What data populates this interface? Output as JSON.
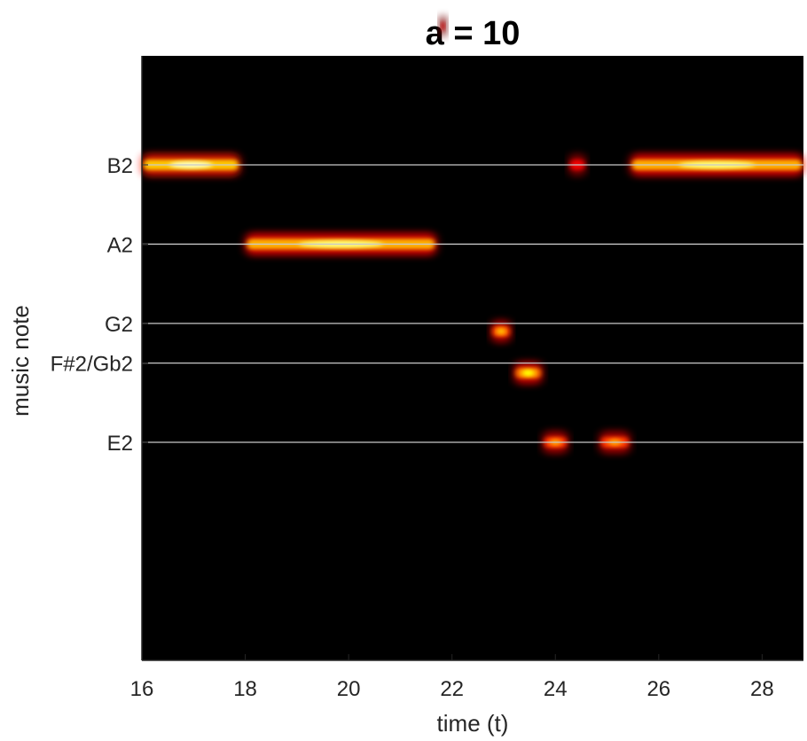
{
  "chart_data": {
    "type": "heatmap",
    "title": "a = 10",
    "xlabel": "time (t)",
    "ylabel": "music note",
    "xlim": [
      16,
      28.8
    ],
    "x_ticks": [
      16,
      18,
      20,
      22,
      24,
      26,
      28
    ],
    "note_axis_range": [
      -12.5,
      2.75
    ],
    "notes": [
      {
        "label": "B2",
        "offset": 0
      },
      {
        "label": "A2",
        "offset": -2
      },
      {
        "label": "G2",
        "offset": -4
      },
      {
        "label": "F#2/Gb2",
        "offset": -5
      },
      {
        "label": "E2",
        "offset": -7
      }
    ],
    "colormap": "hot",
    "background": "#000000",
    "grid_color": "#c8c8c8",
    "segments": [
      {
        "t_start": 16.0,
        "t_end": 17.9,
        "note": "B2",
        "intensity": 0.95
      },
      {
        "t_start": 18.0,
        "t_end": 21.7,
        "note": "A2",
        "intensity": 0.9
      },
      {
        "t_start": 21.75,
        "t_end": 21.9,
        "note_offset": 3.5,
        "intensity": 0.4
      },
      {
        "t_start": 22.75,
        "t_end": 23.15,
        "note": "G2",
        "note_offset_shift": -0.2,
        "intensity": 0.7
      },
      {
        "t_start": 23.2,
        "t_end": 23.75,
        "note": "F#2/Gb2",
        "note_offset_shift": -0.25,
        "intensity": 0.8
      },
      {
        "t_start": 23.75,
        "t_end": 24.25,
        "note": "E2",
        "intensity": 0.65
      },
      {
        "t_start": 24.25,
        "t_end": 24.6,
        "note": "B2",
        "intensity": 0.5
      },
      {
        "t_start": 24.85,
        "t_end": 25.45,
        "note": "E2",
        "intensity": 0.65
      },
      {
        "t_start": 25.45,
        "t_end": 28.8,
        "note": "B2",
        "intensity": 0.9
      }
    ]
  }
}
